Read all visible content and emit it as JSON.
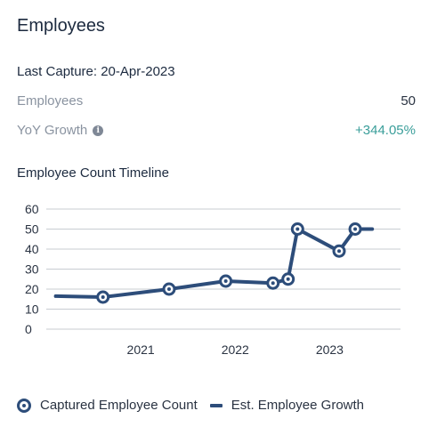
{
  "panel": {
    "title": "Employees",
    "last_capture": "Last Capture: 20-Apr-2023",
    "employees_label": "Employees",
    "employees_value": "50",
    "yoy_label": "YoY Growth",
    "yoy_value": "+344.05%",
    "info_icon": "info-icon",
    "yoy_color": "#3a9e9a"
  },
  "chart_title": "Employee Count Timeline",
  "legend": {
    "captured": "Captured Employee Count",
    "estimated": "Est. Employee Growth"
  },
  "chart_data": {
    "type": "line",
    "title": "Employee Count Timeline",
    "xlabel": "",
    "ylabel": "",
    "ylim": [
      0,
      60
    ],
    "yticks": [
      0,
      10,
      20,
      30,
      40,
      50,
      60
    ],
    "xlim": [
      2020.0,
      2023.75
    ],
    "xticks": [
      {
        "value": 2021,
        "label": "2021"
      },
      {
        "value": 2022,
        "label": "2022"
      },
      {
        "value": 2023,
        "label": "2023"
      }
    ],
    "grid": true,
    "series": [
      {
        "name": "Est. Employee Growth",
        "color": "#2d4d7a",
        "points": [
          [
            2020.1,
            16.5
          ],
          [
            2020.6,
            16
          ],
          [
            2021.3,
            20
          ],
          [
            2021.9,
            24
          ],
          [
            2022.4,
            23
          ],
          [
            2022.56,
            25
          ],
          [
            2022.66,
            50
          ],
          [
            2023.1,
            39
          ],
          [
            2023.27,
            50
          ],
          [
            2023.45,
            50
          ]
        ]
      },
      {
        "name": "Captured Employee Count",
        "color": "#2d4d7a",
        "markers": true,
        "points": [
          [
            2020.6,
            16
          ],
          [
            2021.3,
            20
          ],
          [
            2021.9,
            24
          ],
          [
            2022.4,
            23
          ],
          [
            2022.56,
            25
          ],
          [
            2022.66,
            50
          ],
          [
            2023.1,
            39
          ],
          [
            2023.27,
            50
          ]
        ]
      }
    ]
  }
}
